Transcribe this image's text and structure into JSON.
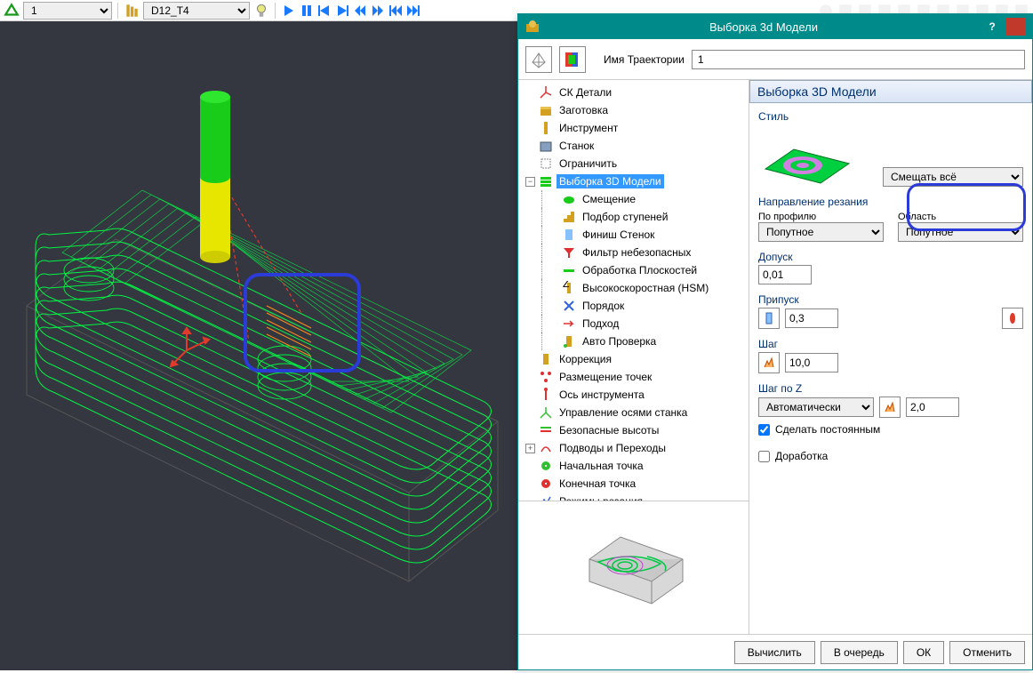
{
  "toolbar": {
    "number_dropdown": "1",
    "tool_dropdown": "D12_T4"
  },
  "dialog": {
    "title": "Выборка 3d Модели",
    "toolbar": {
      "trajectory_label": "Имя Траектории",
      "trajectory_value": "1"
    },
    "tree": [
      {
        "d": 0,
        "exp": "",
        "icon": "axes",
        "label": "СК Детали"
      },
      {
        "d": 0,
        "exp": "",
        "icon": "stock",
        "label": "Заготовка"
      },
      {
        "d": 0,
        "exp": "",
        "icon": "tool",
        "label": "Инструмент"
      },
      {
        "d": 0,
        "exp": "",
        "icon": "machine",
        "label": "Станок"
      },
      {
        "d": 0,
        "exp": "",
        "icon": "limit",
        "label": "Ограничить"
      },
      {
        "d": 0,
        "exp": "-",
        "icon": "stack",
        "label": "Выборка 3D Модели",
        "sel": true
      },
      {
        "d": 1,
        "exp": "",
        "icon": "offset",
        "label": "Смещение"
      },
      {
        "d": 1,
        "exp": "",
        "icon": "steps",
        "label": "Подбор ступеней"
      },
      {
        "d": 1,
        "exp": "",
        "icon": "wall",
        "label": "Финиш Стенок"
      },
      {
        "d": 1,
        "exp": "",
        "icon": "filter",
        "label": "Фильтр небезопасных"
      },
      {
        "d": 1,
        "exp": "",
        "icon": "flat",
        "label": "Обработка Плоскостей"
      },
      {
        "d": 1,
        "exp": "",
        "icon": "hsm",
        "label": "Высокоскоростная (HSM)"
      },
      {
        "d": 1,
        "exp": "",
        "icon": "order",
        "label": "Порядок"
      },
      {
        "d": 1,
        "exp": "",
        "icon": "approach",
        "label": "Подход"
      },
      {
        "d": 1,
        "exp": "",
        "icon": "check",
        "label": "Авто Проверка"
      },
      {
        "d": 0,
        "exp": "",
        "icon": "corr",
        "label": "Коррекция"
      },
      {
        "d": 0,
        "exp": "",
        "icon": "points",
        "label": "Размещение точек"
      },
      {
        "d": 0,
        "exp": "",
        "icon": "axis",
        "label": "Ось инструмента"
      },
      {
        "d": 0,
        "exp": "",
        "icon": "axes2",
        "label": "Управление осями станка"
      },
      {
        "d": 0,
        "exp": "",
        "icon": "safe",
        "label": "Безопасные высоты"
      },
      {
        "d": 0,
        "exp": "+",
        "icon": "leads",
        "label": "Подводы и Переходы"
      },
      {
        "d": 0,
        "exp": "",
        "icon": "start",
        "label": "Начальная точка"
      },
      {
        "d": 0,
        "exp": "",
        "icon": "end",
        "label": "Конечная точка"
      },
      {
        "d": 0,
        "exp": "",
        "icon": "feedrate",
        "label": "Режимы резания"
      }
    ],
    "form": {
      "header": "Выборка 3D Модели",
      "style_label": "Стиль",
      "style_dropdown": "Смещать всё",
      "direction_label": "Направление резания",
      "profile_label": "По профилю",
      "profile_value": "Попутное",
      "area_label": "Область",
      "area_value": "Попутное",
      "tolerance_label": "Допуск",
      "tolerance_value": "0,01",
      "allowance_label": "Припуск",
      "allowance_value": "0,3",
      "step_label": "Шаг",
      "step_value": "10,0",
      "stepz_label": "Шаг по Z",
      "stepz_mode": "Автоматически",
      "stepz_value": "2,0",
      "constant_label": "Сделать постоянным",
      "rest_label": "Доработка"
    },
    "footer": {
      "calc": "Вычислить",
      "queue": "В очередь",
      "ok": "ОК",
      "cancel": "Отменить"
    }
  },
  "colors": {
    "viewport_bg": "#343640",
    "toolpath": "#00ff44",
    "rapid": "#e03a2a",
    "lead": "#ff8c1a",
    "tool_top": "#1acc1a",
    "tool_bot": "#e6e600",
    "dialog_title": "#008b8b",
    "highlight": "#2b3bd8"
  }
}
